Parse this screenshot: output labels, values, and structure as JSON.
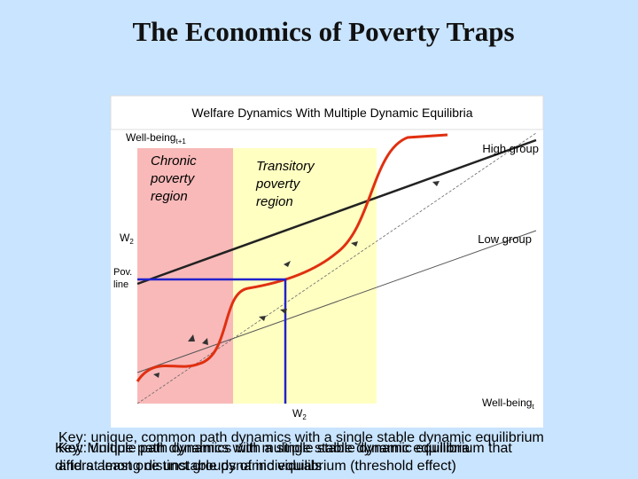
{
  "slide": {
    "title": "The Economics of Poverty Traps"
  },
  "figure": {
    "title": "Welfare Dynamics With Multiple Dynamic Equilibria",
    "y_axis_label": {
      "text": "Well-being",
      "subscript": "t+1"
    },
    "x_axis_label": {
      "text": "Well-being",
      "subscript": "t"
    },
    "chronic_region": [
      "Chronic",
      "poverty",
      "region"
    ],
    "transitory_region": [
      "Transitory",
      "poverty",
      "region"
    ],
    "high_group": "High group",
    "low_group": "Low group",
    "w2_y": {
      "text": "W",
      "subscript": "2"
    },
    "w2_x": {
      "text": "W",
      "subscript": "2"
    },
    "pov_line": [
      "Pov.",
      "line"
    ]
  },
  "key": {
    "lines_a": [
      "Key: unique, common path dynamics with a single stable dynamic equilibrium"
    ],
    "lines_b": [
      "Key: Multiple path dynamics with a single stable dynamic equilibrium that",
      "differs among distinct groups of individuals"
    ],
    "lines_c": [
      "Key: unique path dynamics with multiple stable dynamic equilibria",
      "and at least one unstable dynamic equilibrium (threshold effect)"
    ]
  }
}
